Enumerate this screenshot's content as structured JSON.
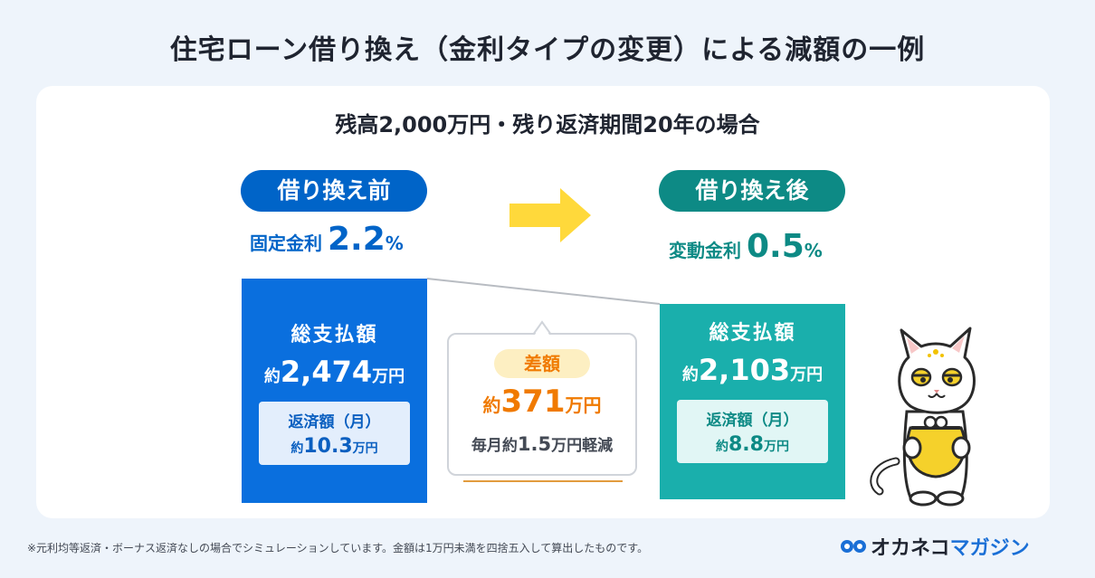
{
  "title": "住宅ローン借り換え（金利タイプの変更）による減額の一例",
  "subtitle": "残高2,000万円・残り返済期間20年の場合",
  "before": {
    "label": "借り換え前",
    "rate_label": "固定金利",
    "rate_value": "2.2",
    "rate_unit": "%",
    "card_title": "総支払額",
    "total_prefix": "約",
    "total_value": "2,474",
    "total_unit": "万円",
    "monthly_label": "返済額（月）",
    "monthly_prefix": "約",
    "monthly_value": "10.3",
    "monthly_unit": "万円"
  },
  "after": {
    "label": "借り換え後",
    "rate_label": "変動金利",
    "rate_value": "0.5",
    "rate_unit": "%",
    "card_title": "総支払額",
    "total_prefix": "約",
    "total_value": "2,103",
    "total_unit": "万円",
    "monthly_label": "返済額（月）",
    "monthly_prefix": "約",
    "monthly_value": "8.8",
    "monthly_unit": "万円"
  },
  "difference": {
    "badge": "差額",
    "prefix": "約",
    "value": "371",
    "unit": "万円",
    "monthly_prefix": "毎月約",
    "monthly_value": "1.5",
    "monthly_suffix": "万円軽減"
  },
  "footnote": "※元利均等返済・ボーナス返済なしの場合でシミュレーションしています。金額は1万円未満を四捨五入して算出したものです。",
  "logo": {
    "text_main": "オカネコ",
    "text_accent": "マガジン"
  },
  "icons": {
    "arrow": "arrow-right-icon",
    "mascot": "cat-mascot-icon",
    "logo": "logo-mark-icon"
  },
  "colors": {
    "before_primary": "#0064c8",
    "after_primary": "#0d8a85",
    "diff_accent": "#f07a00",
    "arrow": "#ffd93b"
  }
}
